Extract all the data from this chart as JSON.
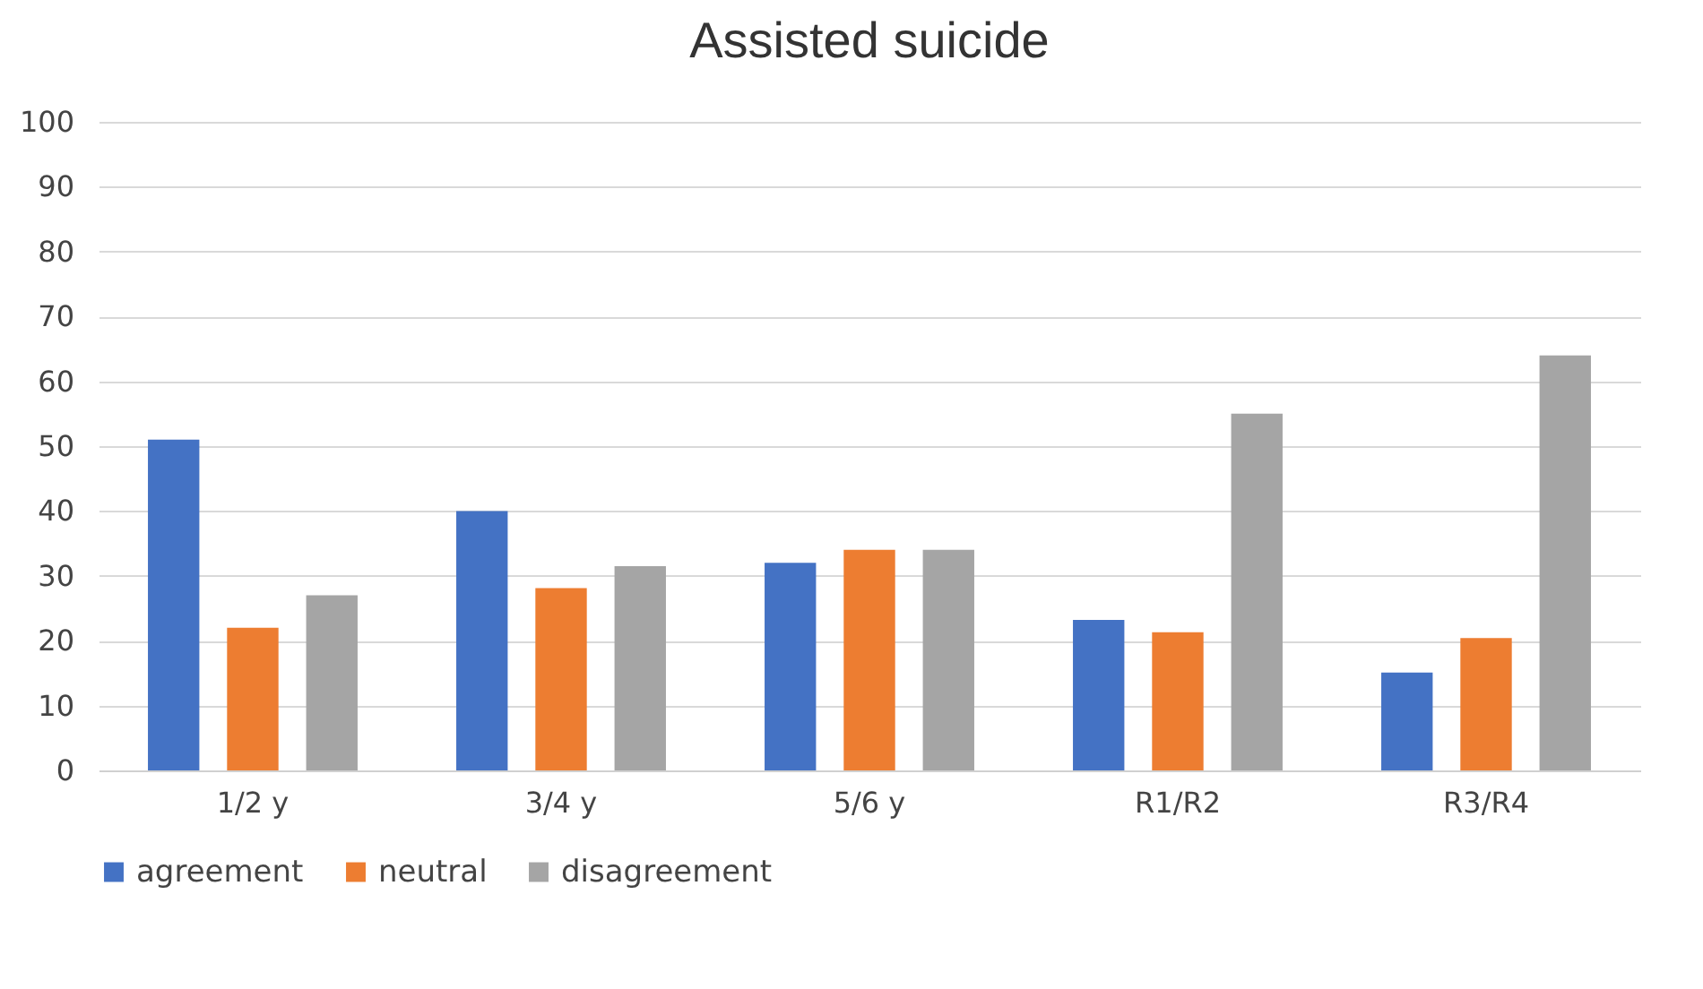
{
  "chart_data": {
    "type": "bar",
    "title": "Assisted suicide",
    "categories": [
      "1/2 y",
      "3/4 y",
      "5/6 y",
      "R1/R2",
      "R3/R4"
    ],
    "series": [
      {
        "name": "agreement",
        "color": "#4472c4",
        "values": [
          51,
          40,
          32,
          23.2,
          15.1
        ]
      },
      {
        "name": "neutral",
        "color": "#ed7d31",
        "values": [
          22,
          28.1,
          34,
          21.3,
          20.4
        ]
      },
      {
        "name": "disagreement",
        "color": "#a5a5a5",
        "values": [
          27,
          31.5,
          34,
          55,
          64
        ]
      }
    ],
    "ylim": [
      0,
      100
    ],
    "yticks": [
      0,
      10,
      20,
      30,
      40,
      50,
      60,
      70,
      80,
      90,
      100
    ],
    "grid": "y",
    "legend": "bottom"
  }
}
